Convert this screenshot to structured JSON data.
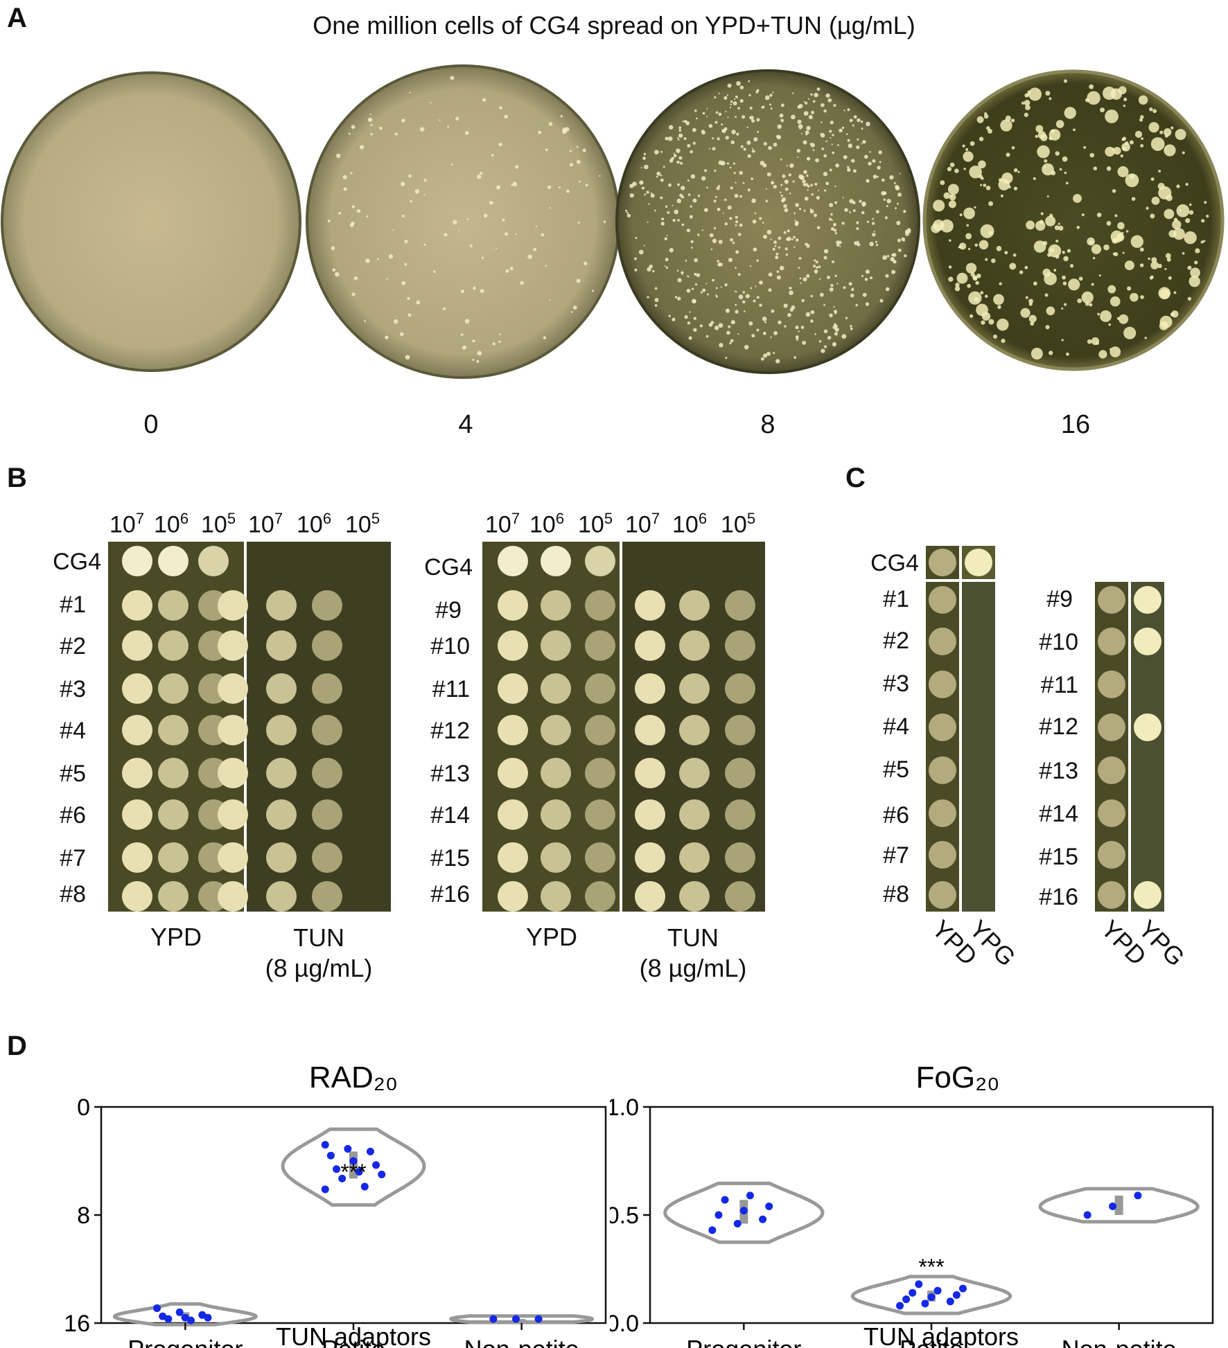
{
  "panel_a": {
    "letter": "A",
    "title": "One million cells of CG4 spread on YPD+TUN (µg/mL)",
    "plates": [
      {
        "label": "0",
        "colony_level": 0
      },
      {
        "label": "4",
        "colony_level": 0.15
      },
      {
        "label": "8",
        "colony_level": 0.7
      },
      {
        "label": "16",
        "colony_level": 0.35
      }
    ]
  },
  "panel_b": {
    "letter": "B",
    "dilutions": [
      {
        "base": "10",
        "exp": "7"
      },
      {
        "base": "10",
        "exp": "6"
      },
      {
        "base": "10",
        "exp": "5"
      }
    ],
    "left_rows": [
      "CG4",
      "#1",
      "#2",
      "#3",
      "#4",
      "#5",
      "#6",
      "#7",
      "#8"
    ],
    "right_rows": [
      "CG4",
      "#9",
      "#10",
      "#11",
      "#12",
      "#13",
      "#14",
      "#15",
      "#16"
    ],
    "media": {
      "ypd": "YPD",
      "tun_line1": "TUN",
      "tun_line2": "(8 µg/mL)"
    }
  },
  "panel_c": {
    "letter": "C",
    "top_row": "CG4",
    "left_rows": [
      "#1",
      "#2",
      "#3",
      "#4",
      "#5",
      "#6",
      "#7",
      "#8"
    ],
    "right_rows": [
      "#9",
      "#10",
      "#11",
      "#12",
      "#13",
      "#14",
      "#15",
      "#16"
    ],
    "media": {
      "ypd": "YPD",
      "ypg": "YPG"
    },
    "ypg_growth_right": [
      true,
      true,
      false,
      true,
      false,
      false,
      false,
      true
    ]
  },
  "panel_d": {
    "letter": "D",
    "colors": {
      "violin": "#999999",
      "point": "#1428e6",
      "box": "#999999"
    },
    "chart_data": [
      {
        "type": "violin",
        "title": "RAD₂₀",
        "xlabel": "TUN adaptors",
        "ylabel": "",
        "categories": [
          "Progenitor",
          "Petite",
          "Non-petite"
        ],
        "y_inverted": true,
        "ylim": [
          16,
          0
        ],
        "yticks": [
          "0",
          "8",
          "16"
        ],
        "annotations": [
          {
            "category": "Petite",
            "text": "***"
          }
        ],
        "series": [
          {
            "category": "Progenitor",
            "values": [
              14.9,
              15.2,
              15.4,
              15.5,
              15.6,
              15.6,
              15.7,
              15.8
            ]
          },
          {
            "category": "Petite",
            "values": [
              2.8,
              3.1,
              3.3,
              3.6,
              4.0,
              4.3,
              4.6,
              4.8,
              5.0,
              5.3,
              5.9,
              6.1
            ]
          },
          {
            "category": "Non-petite",
            "values": [
              15.7,
              15.7,
              15.7
            ]
          }
        ]
      },
      {
        "type": "violin",
        "title": "FoG₂₀",
        "xlabel": "TUN adaptors",
        "ylabel": "",
        "categories": [
          "Progenitor",
          "Petite",
          "Non-petite"
        ],
        "y_inverted": false,
        "ylim": [
          0.0,
          1.0
        ],
        "yticks": [
          "0.0",
          "0.5",
          "1.0"
        ],
        "annotations": [
          {
            "category": "Petite",
            "text": "***"
          }
        ],
        "series": [
          {
            "category": "Progenitor",
            "values": [
              0.43,
              0.46,
              0.48,
              0.5,
              0.52,
              0.54,
              0.57,
              0.59
            ]
          },
          {
            "category": "Petite",
            "values": [
              0.08,
              0.09,
              0.1,
              0.11,
              0.12,
              0.13,
              0.14,
              0.15,
              0.16,
              0.18
            ]
          },
          {
            "category": "Non-petite",
            "values": [
              0.5,
              0.54,
              0.59
            ]
          }
        ]
      }
    ]
  }
}
